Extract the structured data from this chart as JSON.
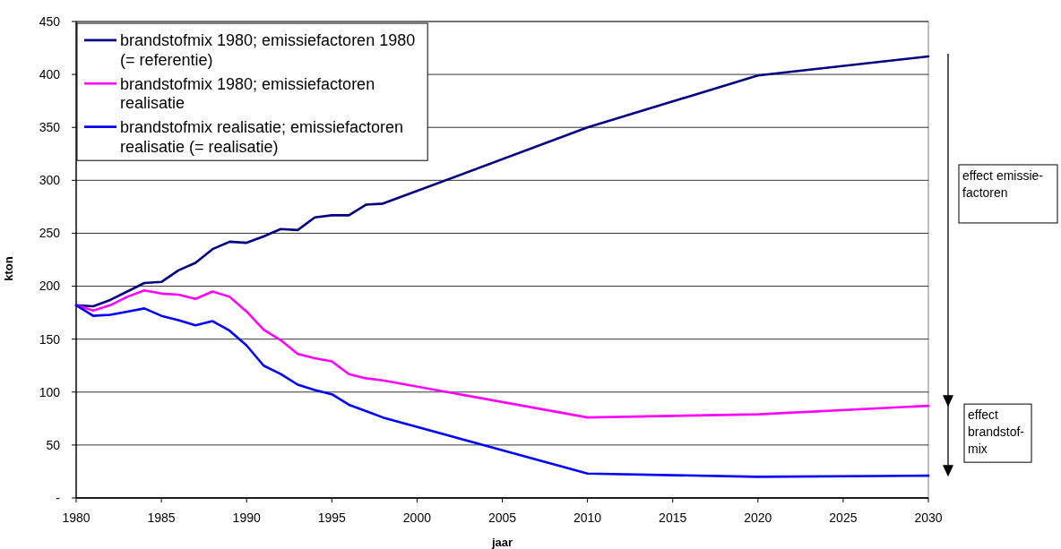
{
  "chart_data": {
    "type": "line",
    "xlabel": "jaar",
    "ylabel": "kton",
    "x": [
      1980,
      1981,
      1982,
      1983,
      1984,
      1985,
      1986,
      1987,
      1988,
      1989,
      1990,
      1991,
      1992,
      1993,
      1994,
      1995,
      1996,
      1997,
      1998,
      2010,
      2020,
      2030
    ],
    "series": [
      {
        "name": "brandstofmix 1980; emissiefactoren 1980 (= referentie)",
        "color": "#000080",
        "values": [
          182,
          181,
          187,
          195,
          203,
          204,
          215,
          222,
          235,
          242,
          241,
          247,
          254,
          253,
          265,
          267,
          267,
          277,
          278,
          350,
          399,
          417
        ]
      },
      {
        "name": "brandstofmix 1980; emissiefactoren realisatie",
        "color": "#ff00ff",
        "values": [
          182,
          177,
          182,
          190,
          196,
          193,
          192,
          188,
          195,
          190,
          176,
          159,
          149,
          136,
          132,
          129,
          117,
          113,
          111,
          76,
          79,
          87
        ]
      },
      {
        "name": "brandstofmix realisatie; emissiefactoren realisatie (= realisatie)",
        "color": "#0000ff",
        "values": [
          182,
          172,
          173,
          176,
          179,
          172,
          168,
          163,
          167,
          158,
          144,
          125,
          117,
          107,
          102,
          98,
          88,
          82,
          76,
          23,
          20,
          21
        ]
      }
    ],
    "xlim": [
      1980,
      2030
    ],
    "xticks": [
      1980,
      1985,
      1990,
      1995,
      2000,
      2005,
      2010,
      2015,
      2020,
      2025,
      2030
    ],
    "ylim": [
      0,
      450
    ],
    "yticks": [
      {
        "value": 0,
        "label": "-"
      },
      50,
      100,
      150,
      200,
      250,
      300,
      350,
      400,
      450
    ],
    "grid": "y",
    "legend": "top left",
    "annotations": [
      "effect emissie-\nfactoren",
      "effect\nbrandstof-\nmix"
    ]
  }
}
